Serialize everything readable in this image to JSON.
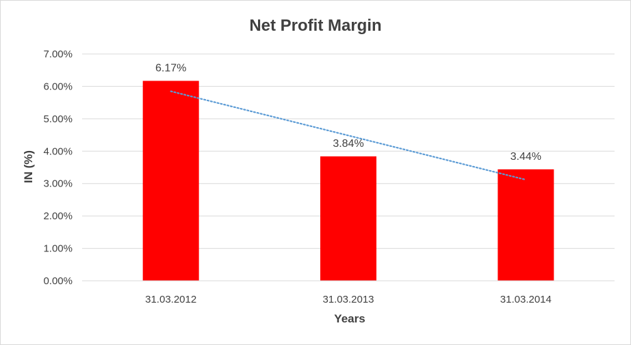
{
  "chart_data": {
    "type": "bar",
    "title": "Net Profit Margin",
    "xlabel": "Years",
    "ylabel": "IN (%)",
    "categories": [
      "31.03.2012",
      "31.03.2013",
      "31.03.2014"
    ],
    "values": [
      6.17,
      3.84,
      3.44
    ],
    "data_labels": [
      "6.17%",
      "3.84%",
      "3.44%"
    ],
    "ylim": [
      0,
      7
    ],
    "yticks": [
      0,
      1,
      2,
      3,
      4,
      5,
      6,
      7
    ],
    "ytick_labels": [
      "0.00%",
      "1.00%",
      "2.00%",
      "3.00%",
      "4.00%",
      "5.00%",
      "6.00%",
      "7.00%"
    ],
    "grid": true,
    "legend": "none",
    "bar_color": "#ff0000",
    "trendline": {
      "type": "linear",
      "style": "dotted",
      "color": "#5b9bd5"
    }
  }
}
